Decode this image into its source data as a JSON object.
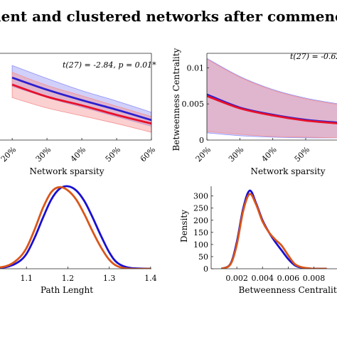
{
  "figure": {
    "title": "ient and clustered networks after commenc"
  },
  "chart_data": [
    {
      "type": "line",
      "panel": "top-left",
      "annotation": "t(27) = -2.84, p = 0.01*",
      "xlabel": "Network sparsity",
      "ylabel": "",
      "x": [
        0.2,
        0.3,
        0.4,
        0.5,
        0.6
      ],
      "xlim": [
        0.2,
        0.6
      ],
      "x_tick_labels": [
        "20%",
        "30%",
        "40%",
        "50%",
        "60%"
      ],
      "y_tick_labels": [],
      "ylim": [
        0,
        1
      ],
      "series": [
        {
          "color": "#2b1fd0",
          "values": [
            0.72,
            0.58,
            0.46,
            0.35,
            0.23
          ],
          "band_low": [
            0.62,
            0.49,
            0.38,
            0.27,
            0.16
          ],
          "band_high": [
            0.86,
            0.71,
            0.57,
            0.45,
            0.32
          ],
          "band_color": "#8e8ef5"
        },
        {
          "color": "#e8102a",
          "values": [
            0.64,
            0.5,
            0.4,
            0.29,
            0.19
          ],
          "band_low": [
            0.49,
            0.37,
            0.28,
            0.19,
            0.09
          ],
          "band_high": [
            0.78,
            0.63,
            0.51,
            0.39,
            0.27
          ],
          "band_color": "#f59090"
        }
      ]
    },
    {
      "type": "line",
      "panel": "top-right",
      "annotation": "t(27) = -0.62",
      "xlabel": "Network sparsity",
      "ylabel": "Betweenness Centrality",
      "x": [
        0.2,
        0.3,
        0.4,
        0.5,
        0.6
      ],
      "xlim": [
        0.2,
        0.6
      ],
      "x_tick_labels": [
        "20%",
        "30%",
        "40%",
        "50%"
      ],
      "y_ticks": [
        0,
        0.005,
        0.01
      ],
      "y_tick_labels": [
        "0",
        "0.005",
        "0.01"
      ],
      "ylim": [
        0,
        0.012
      ],
      "series": [
        {
          "color": "#2b1fd0",
          "values": [
            0.0063,
            0.0045,
            0.0035,
            0.0028,
            0.0024
          ],
          "band_low": [
            0.001,
            0.0006,
            0.0004,
            0.0003,
            0.0003
          ],
          "band_high": [
            0.0113,
            0.0088,
            0.007,
            0.0058,
            0.005
          ],
          "band_color": "#8e8ef5"
        },
        {
          "color": "#e8102a",
          "values": [
            0.0061,
            0.0044,
            0.0034,
            0.0027,
            0.0023
          ],
          "band_low": [
            0.0012,
            0.0008,
            0.0005,
            0.0004,
            0.0003
          ],
          "band_high": [
            0.0112,
            0.0087,
            0.0069,
            0.0057,
            0.0049
          ],
          "band_color": "#f59090"
        }
      ]
    },
    {
      "type": "line",
      "panel": "bottom-left",
      "xlabel": "Path Lenght",
      "ylabel": "",
      "x": [
        1.0,
        1.05,
        1.08,
        1.1,
        1.12,
        1.14,
        1.16,
        1.18,
        1.2,
        1.22,
        1.24,
        1.26,
        1.28,
        1.3,
        1.32,
        1.35,
        1.4
      ],
      "xlim": [
        1.0,
        1.4
      ],
      "x_ticks": [
        1.1,
        1.2,
        1.3,
        1.4
      ],
      "x_tick_labels": [
        "1.1",
        "1.2",
        "1.3",
        "1.4"
      ],
      "ylim": [
        0,
        1
      ],
      "series": [
        {
          "color": "#1a0fd0",
          "values": [
            0.0,
            0.02,
            0.08,
            0.18,
            0.38,
            0.62,
            0.84,
            0.97,
            1.0,
            0.95,
            0.82,
            0.62,
            0.4,
            0.2,
            0.07,
            0.01,
            0.0
          ]
        },
        {
          "color": "#d9561a",
          "values": [
            0.0,
            0.03,
            0.12,
            0.25,
            0.48,
            0.74,
            0.93,
            0.99,
            0.95,
            0.84,
            0.66,
            0.45,
            0.26,
            0.11,
            0.03,
            0.0,
            0.0
          ]
        }
      ]
    },
    {
      "type": "line",
      "panel": "bottom-right",
      "xlabel": "Betweenness Centrality",
      "ylabel": "Density",
      "x": [
        0.0008,
        0.0015,
        0.002,
        0.0025,
        0.003,
        0.0035,
        0.004,
        0.0045,
        0.005,
        0.0055,
        0.006,
        0.0065,
        0.007,
        0.0075,
        0.008,
        0.009
      ],
      "xlim": [
        0.0,
        0.0095
      ],
      "x_ticks": [
        0.002,
        0.004,
        0.006,
        0.008
      ],
      "x_tick_labels": [
        "0.002",
        "0.004",
        "0.006",
        "0.008"
      ],
      "y_ticks": [
        0,
        50,
        100,
        150,
        200,
        250,
        300
      ],
      "y_tick_labels": [
        "0",
        "50",
        "100",
        "150",
        "200",
        "250",
        "300"
      ],
      "ylim": [
        0,
        340
      ],
      "series": [
        {
          "color": "#1a0fd0",
          "values": [
            0,
            20,
            110,
            250,
            322,
            270,
            200,
            150,
            110,
            75,
            40,
            15,
            5,
            2,
            0,
            0
          ]
        },
        {
          "color": "#d9561a",
          "values": [
            0,
            18,
            100,
            240,
            308,
            265,
            195,
            150,
            120,
            95,
            55,
            20,
            7,
            2,
            0,
            0
          ]
        }
      ]
    }
  ]
}
